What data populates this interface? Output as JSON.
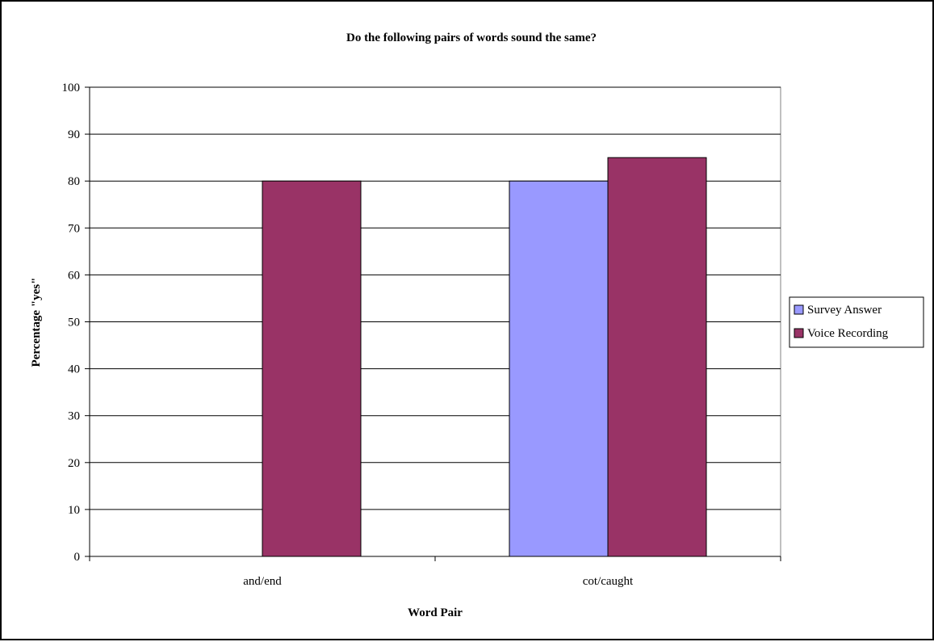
{
  "chart_data": {
    "type": "bar",
    "title": "Do the following pairs of words sound the same?",
    "xlabel": "Word Pair",
    "ylabel": "Percentage \"yes\"",
    "categories": [
      "and/end",
      "cot/caught"
    ],
    "series": [
      {
        "name": "Survey Answer",
        "values": [
          0,
          80
        ],
        "color": "#9999ff"
      },
      {
        "name": "Voice Recording",
        "values": [
          80,
          85
        ],
        "color": "#993366"
      }
    ],
    "ylim": [
      0,
      100
    ],
    "yticks": [
      "0",
      "10",
      "20",
      "30",
      "40",
      "50",
      "60",
      "70",
      "80",
      "90",
      "100"
    ],
    "grid": true,
    "legend": "right"
  }
}
